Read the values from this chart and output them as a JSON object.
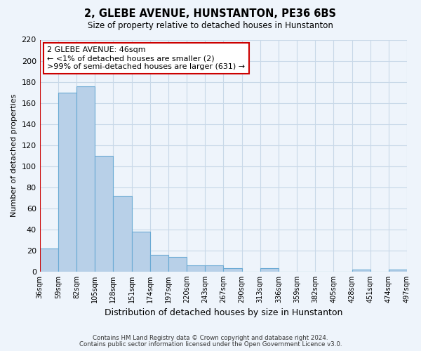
{
  "title": "2, GLEBE AVENUE, HUNSTANTON, PE36 6BS",
  "subtitle": "Size of property relative to detached houses in Hunstanton",
  "xlabel": "Distribution of detached houses by size in Hunstanton",
  "ylabel": "Number of detached properties",
  "footer_line1": "Contains HM Land Registry data © Crown copyright and database right 2024.",
  "footer_line2": "Contains public sector information licensed under the Open Government Licence v3.0.",
  "bin_labels": [
    "36sqm",
    "59sqm",
    "82sqm",
    "105sqm",
    "128sqm",
    "151sqm",
    "174sqm",
    "197sqm",
    "220sqm",
    "243sqm",
    "267sqm",
    "290sqm",
    "313sqm",
    "336sqm",
    "359sqm",
    "382sqm",
    "405sqm",
    "428sqm",
    "451sqm",
    "474sqm",
    "497sqm"
  ],
  "bar_values": [
    22,
    170,
    176,
    110,
    72,
    38,
    16,
    14,
    6,
    6,
    3,
    0,
    3,
    0,
    0,
    0,
    0,
    2,
    0,
    2
  ],
  "bar_color": "#b8d0e8",
  "bar_edge_color": "#6aaad4",
  "grid_color": "#c8d8e8",
  "bg_color": "#eef4fb",
  "annot_line1": "2 GLEBE AVENUE: 46sqm",
  "annot_line2": "← <1% of detached houses are smaller (2)",
  "annot_line3": ">99% of semi-detached houses are larger (631) →",
  "annot_box_facecolor": "#ffffff",
  "annot_box_edgecolor": "#cc0000",
  "vline_color": "#cc0000",
  "ylim": [
    0,
    220
  ],
  "yticks": [
    0,
    20,
    40,
    60,
    80,
    100,
    120,
    140,
    160,
    180,
    200,
    220
  ]
}
